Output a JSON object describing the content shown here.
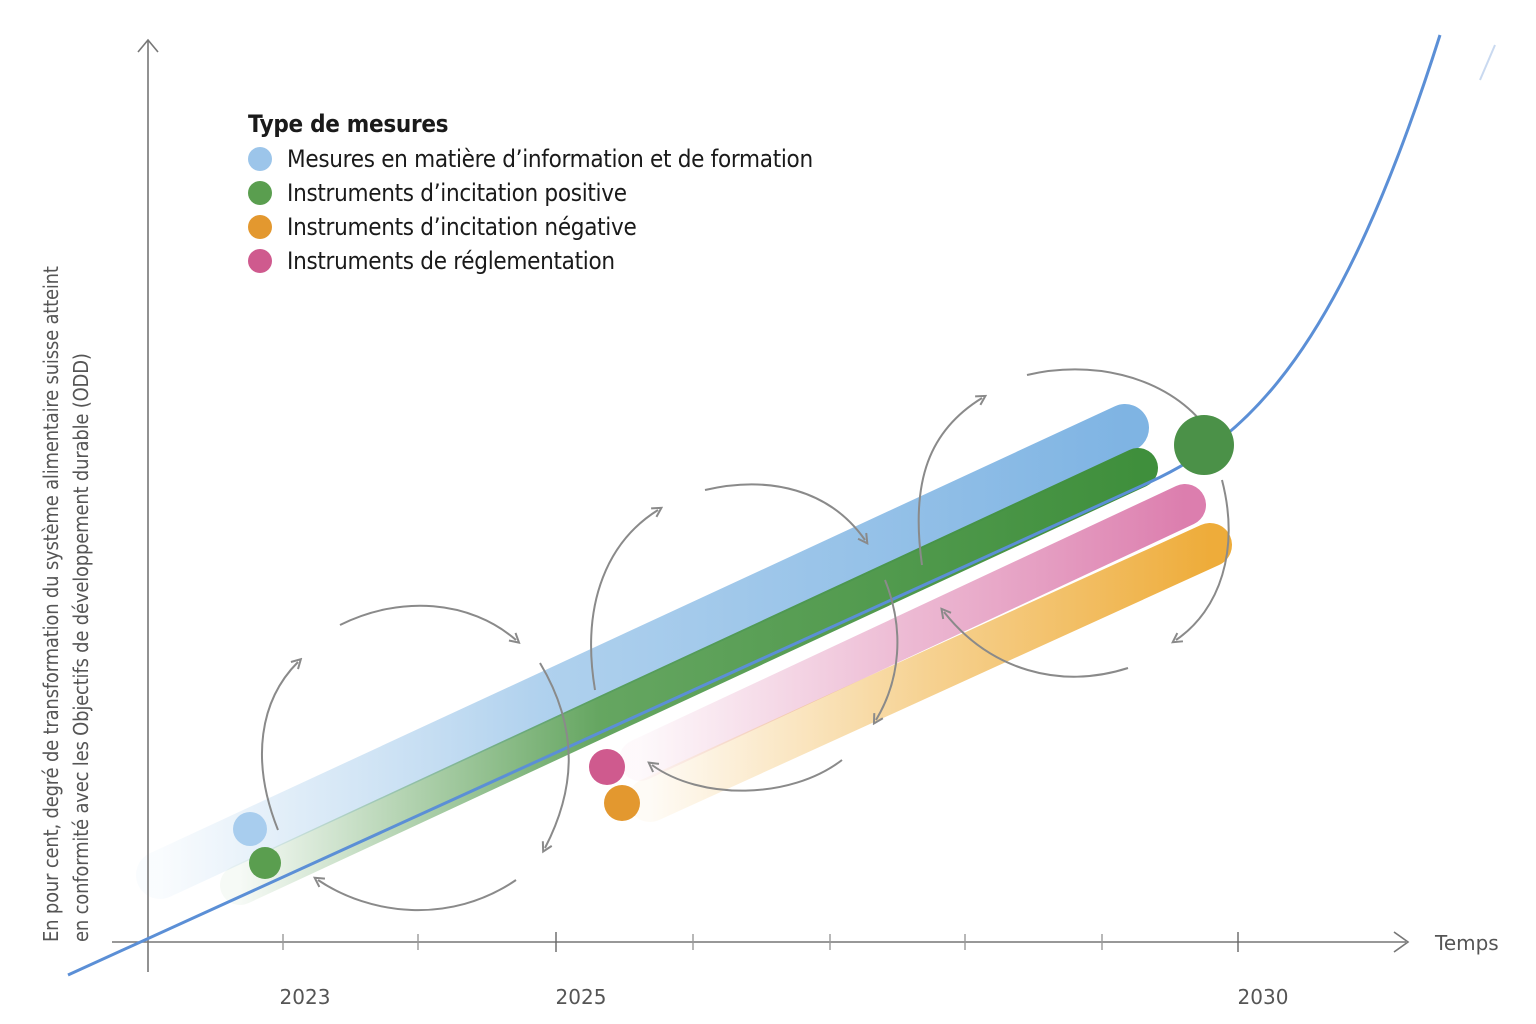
{
  "legend": {
    "title": "Type de mesures",
    "items": [
      {
        "label": "Mesures en matière d’information et de formation",
        "color": "#9cc5ea"
      },
      {
        "label": "Instruments d’incitation positive",
        "color": "#5a9e4f"
      },
      {
        "label": "Instruments d’incitation négative",
        "color": "#e3982f"
      },
      {
        "label": "Instruments de réglementation",
        "color": "#cf5a8e"
      }
    ]
  },
  "axes": {
    "y_label_line1": "En pour cent, degré de transformation du système alimentaire suisse atteint",
    "y_label_line2": "en conformité avec les Objectifs de développement durable (ODD)",
    "x_label": "Temps",
    "x_ticks": [
      "2023",
      "2025",
      "2030"
    ]
  },
  "colors": {
    "curve": "#5b8fd6",
    "axis": "#777777",
    "arrows": "#8a8a8a",
    "band_info": "#8dbde6",
    "band_positive": "#4a9645",
    "band_regulation": "#e08ab5",
    "band_negative": "#f0b347"
  }
}
